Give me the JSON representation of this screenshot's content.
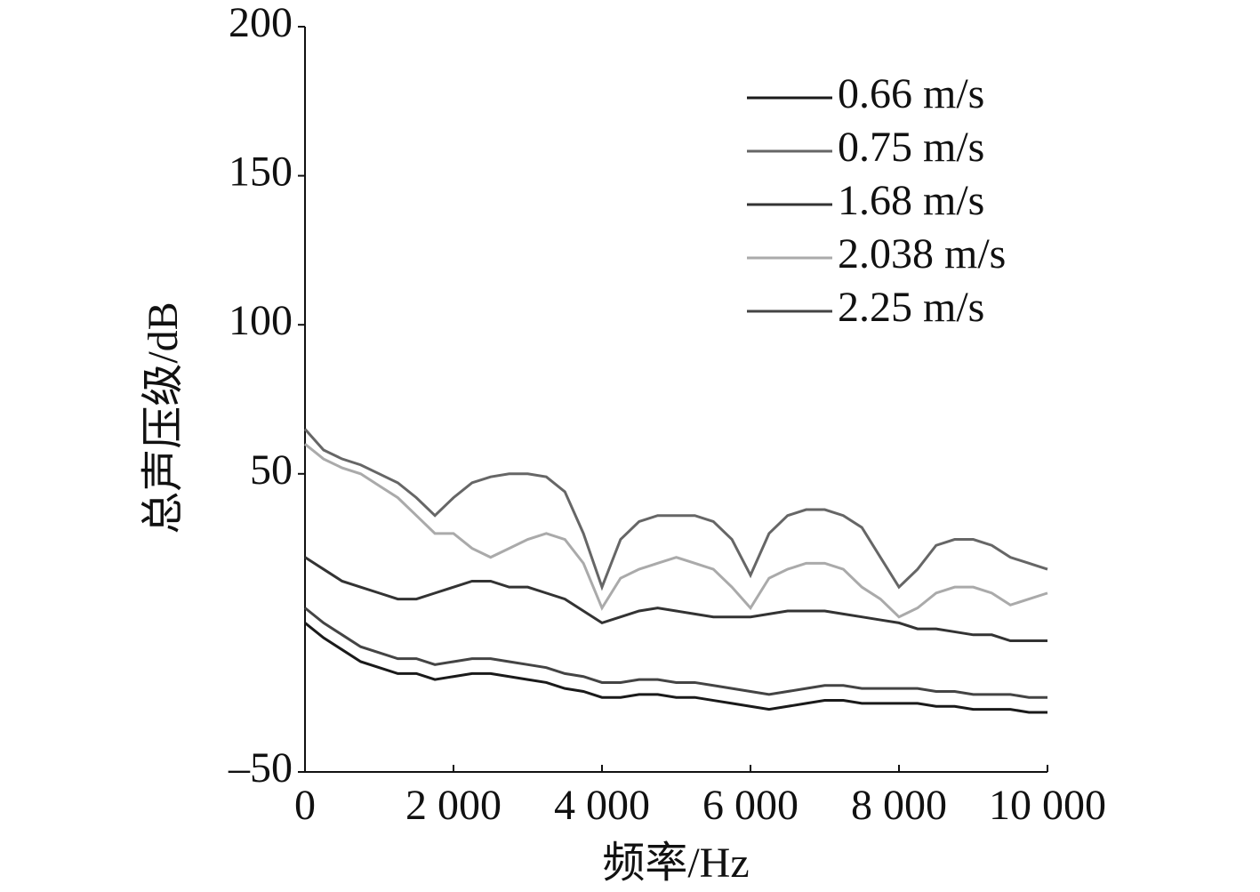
{
  "chart_data": {
    "type": "line",
    "x_label": "频率/Hz",
    "y_label": "总声压级/dB",
    "xlim": [
      0,
      10000
    ],
    "ylim": [
      -50,
      200
    ],
    "xticks": [
      0,
      {
        "value": 2000,
        "label": "2 000"
      },
      {
        "value": 4000,
        "label": "4 000"
      },
      {
        "value": 6000,
        "label": "6 000"
      },
      {
        "value": 8000,
        "label": "8 000"
      },
      {
        "value": 10000,
        "label": "10 000"
      }
    ],
    "yticks": [
      200,
      150,
      100,
      50,
      {
        "value": -50,
        "label": "–50"
      }
    ],
    "grid": false,
    "legend": "upper right",
    "x": [
      0,
      250,
      500,
      750,
      1000,
      1250,
      1500,
      1750,
      2000,
      2250,
      2500,
      2750,
      3000,
      3250,
      3500,
      3750,
      4000,
      4250,
      4500,
      4750,
      5000,
      5250,
      5500,
      5750,
      6000,
      6250,
      6500,
      6750,
      7000,
      7250,
      7500,
      7750,
      8000,
      8250,
      8500,
      8750,
      9000,
      9250,
      9500,
      9750,
      10000
    ],
    "series": [
      {
        "name": "0.66 m/s",
        "color": "#1a1a1a",
        "values": [
          0,
          -5,
          -9,
          -13,
          -15,
          -17,
          -17,
          -19,
          -18,
          -17,
          -17,
          -18,
          -19,
          -20,
          -22,
          -23,
          -25,
          -25,
          -24,
          -24,
          -25,
          -25,
          -26,
          -27,
          -28,
          -29,
          -28,
          -27,
          -26,
          -26,
          -27,
          -27,
          -27,
          -27,
          -28,
          -28,
          -29,
          -29,
          -29,
          -30,
          -30
        ]
      },
      {
        "name": "0.75 m/s",
        "color": "#666666",
        "values": [
          65,
          58,
          55,
          53,
          50,
          47,
          42,
          36,
          42,
          47,
          49,
          50,
          50,
          49,
          44,
          30,
          12,
          28,
          34,
          36,
          36,
          36,
          34,
          28,
          16,
          30,
          36,
          38,
          38,
          36,
          32,
          22,
          12,
          18,
          26,
          28,
          28,
          26,
          22,
          20,
          18
        ]
      },
      {
        "name": "1.68 m/s",
        "color": "#333333",
        "values": [
          22,
          18,
          14,
          12,
          10,
          8,
          8,
          10,
          12,
          14,
          14,
          12,
          12,
          10,
          8,
          4,
          0,
          2,
          4,
          5,
          4,
          3,
          2,
          2,
          2,
          3,
          4,
          4,
          4,
          3,
          2,
          1,
          0,
          -2,
          -2,
          -3,
          -4,
          -4,
          -6,
          -6,
          -6
        ]
      },
      {
        "name": "2.038 m/s",
        "color": "#aaaaaa",
        "values": [
          60,
          55,
          52,
          50,
          46,
          42,
          36,
          30,
          30,
          25,
          22,
          25,
          28,
          30,
          28,
          20,
          5,
          15,
          18,
          20,
          22,
          20,
          18,
          12,
          5,
          15,
          18,
          20,
          20,
          18,
          12,
          8,
          2,
          5,
          10,
          12,
          12,
          10,
          6,
          8,
          10
        ]
      },
      {
        "name": "2.25 m/s",
        "color": "#444444",
        "values": [
          5,
          0,
          -4,
          -8,
          -10,
          -12,
          -12,
          -14,
          -13,
          -12,
          -12,
          -13,
          -14,
          -15,
          -17,
          -18,
          -20,
          -20,
          -19,
          -19,
          -20,
          -20,
          -21,
          -22,
          -23,
          -24,
          -23,
          -22,
          -21,
          -21,
          -22,
          -22,
          -22,
          -22,
          -23,
          -23,
          -24,
          -24,
          -24,
          -25,
          -25
        ]
      }
    ]
  }
}
